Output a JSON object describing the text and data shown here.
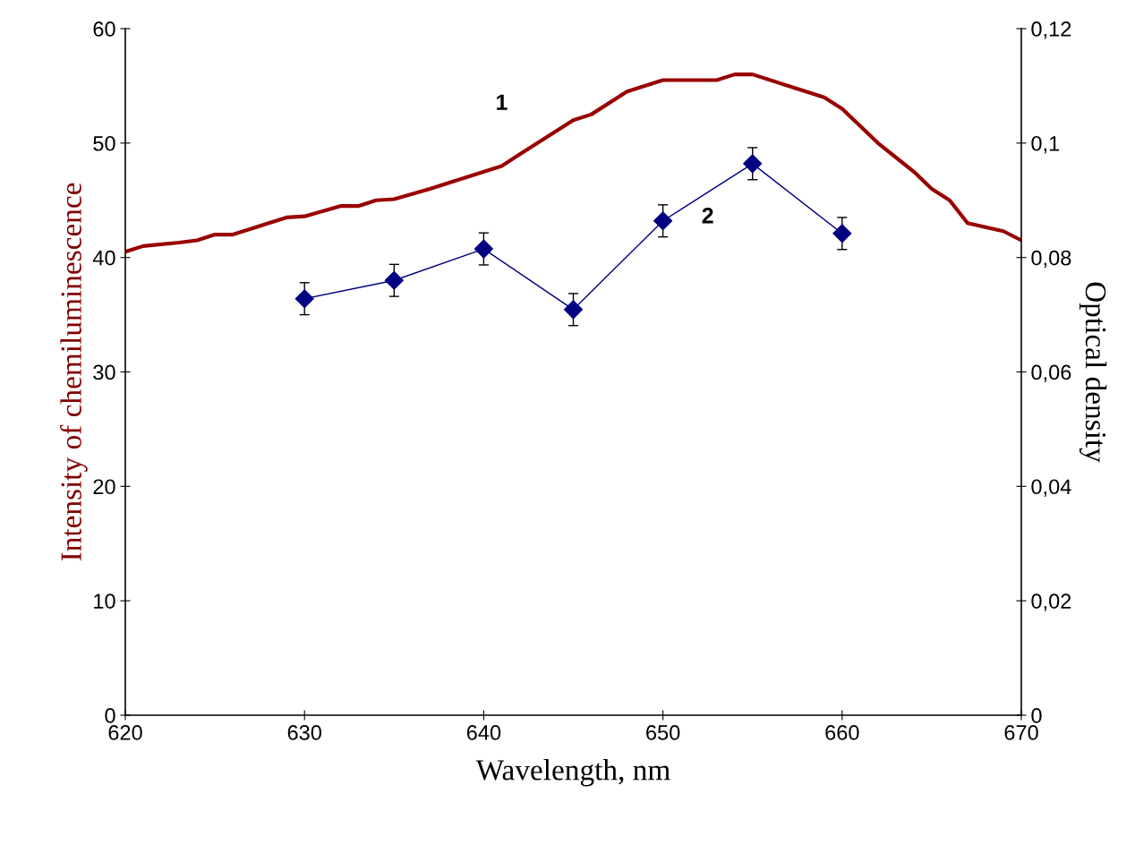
{
  "chart_data": {
    "type": "line",
    "xlabel": "Wavelength, nm",
    "ylabel": "Intensity of chemiluminescence",
    "y2label": "Optical density",
    "xlim": [
      620,
      670
    ],
    "xticks": [
      620,
      630,
      640,
      650,
      660,
      670
    ],
    "ylim": [
      0,
      60
    ],
    "yticks": [
      0,
      10,
      20,
      30,
      40,
      50,
      60
    ],
    "y2lim": [
      0,
      0.12
    ],
    "y2ticks": [
      {
        "value": 0,
        "label": "0"
      },
      {
        "value": 0.02,
        "label": "0,02"
      },
      {
        "value": 0.04,
        "label": "0,04"
      },
      {
        "value": 0.06,
        "label": "0,06"
      },
      {
        "value": 0.08,
        "label": "0,08"
      },
      {
        "value": 0.1,
        "label": "0,1"
      },
      {
        "value": 0.12,
        "label": "0,12"
      }
    ],
    "grid": false,
    "legend": false,
    "series": [
      {
        "color": "#990000",
        "marker": "none",
        "x": [
          620,
          621,
          623,
          624,
          625,
          626,
          628,
          629,
          630,
          632,
          633,
          634,
          635,
          637,
          639,
          641,
          642,
          644,
          645,
          646,
          648,
          650,
          653,
          654,
          655,
          657,
          659,
          660,
          662,
          664,
          665,
          666,
          667,
          669,
          670
        ],
        "values": [
          40.5,
          41,
          41.3,
          41.5,
          42,
          42,
          43,
          43.5,
          43.6,
          44.5,
          44.5,
          45,
          45.1,
          46,
          47,
          48,
          49,
          51,
          52,
          52.5,
          54.5,
          55.5,
          55.5,
          56,
          56,
          55,
          54,
          53,
          50,
          47.5,
          46,
          45,
          43,
          42.3,
          41.5
        ]
      },
      {
        "color": "#000080",
        "marker": "diamond",
        "axis": "y2",
        "x": [
          630,
          635,
          640,
          645,
          650,
          655,
          660
        ],
        "values": [
          0.0728,
          0.076,
          0.0815,
          0.0709,
          0.0864,
          0.0964,
          0.0842
        ],
        "errors": [
          0.0028,
          0.0028,
          0.0028,
          0.0028,
          0.0028,
          0.0028,
          0.0028
        ]
      }
    ],
    "annotations": [
      "1",
      "2"
    ]
  }
}
